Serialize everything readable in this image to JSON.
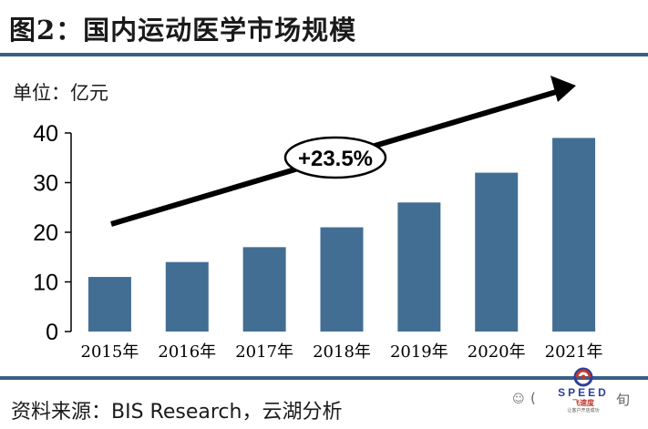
{
  "title": "图2：国内运动医学市场规模",
  "unit_label": "单位：亿元",
  "source": "资料来源：BIS Research，云湖分析",
  "watermark": {
    "wechat_glyph": "☺",
    "partial_text": "(",
    "tail_glyph": "旬",
    "logo_word": "SPEED",
    "logo_cn": "飞速度",
    "logo_slogan": "让客户开店成功"
  },
  "colors": {
    "bar": "#436e93",
    "rule": "#3a5f86",
    "arrow": "#000000"
  },
  "chart_data": {
    "type": "bar",
    "categories": [
      "2015年",
      "2016年",
      "2017年",
      "2018年",
      "2019年",
      "2020年",
      "2021年"
    ],
    "values": [
      11,
      14,
      17,
      21,
      26,
      32,
      39
    ],
    "ylim": [
      0,
      40
    ],
    "yticks": [
      0,
      10,
      20,
      30,
      40
    ],
    "grid": false,
    "annotation": {
      "text": "+23.5%",
      "type": "growth-arrow"
    }
  }
}
